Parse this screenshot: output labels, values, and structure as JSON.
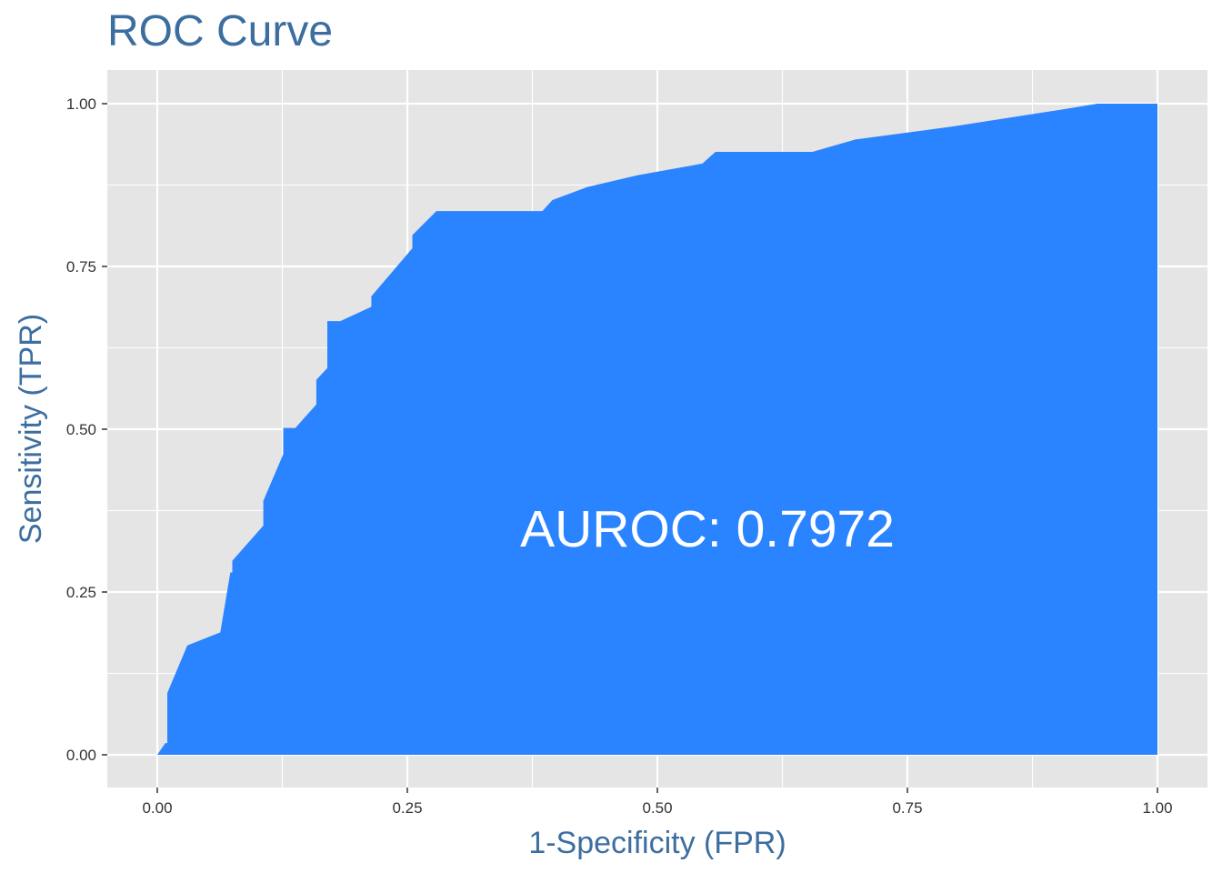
{
  "chart_data": {
    "type": "area",
    "title": "ROC Curve",
    "xlabel": "1-Specificity (FPR)",
    "ylabel": "Sensitivity (TPR)",
    "xlim": [
      -0.1,
      1.1
    ],
    "ylim": [
      -0.05,
      1.05
    ],
    "x_ticks": [
      0.0,
      0.25,
      0.5,
      0.75,
      1.0
    ],
    "x_tick_labels": [
      "0.00",
      "0.25",
      "0.50",
      "0.75",
      "1.00"
    ],
    "y_ticks": [
      0.0,
      0.25,
      0.5,
      0.75,
      1.0
    ],
    "y_tick_labels": [
      "0.00",
      "0.25",
      "0.50",
      "0.75",
      "1.00"
    ],
    "grid": true,
    "fill_color": "#2b84ff",
    "panel_color": "#e5e5e5",
    "annotation": "AUROC: 0.7972",
    "series": [
      {
        "x": [
          0.0,
          0.008,
          0.01,
          0.01,
          0.03,
          0.063,
          0.073,
          0.075,
          0.075,
          0.106,
          0.106,
          0.126,
          0.126,
          0.138,
          0.159,
          0.159,
          0.17,
          0.17,
          0.183,
          0.214,
          0.214,
          0.255,
          0.255,
          0.279,
          0.385,
          0.395,
          0.43,
          0.48,
          0.545,
          0.558,
          0.655,
          0.698,
          0.795,
          0.9,
          0.94,
          1.0
        ],
        "y": [
          0.0,
          0.018,
          0.018,
          0.095,
          0.168,
          0.188,
          0.28,
          0.28,
          0.298,
          0.352,
          0.39,
          0.462,
          0.502,
          0.502,
          0.538,
          0.576,
          0.594,
          0.666,
          0.666,
          0.688,
          0.704,
          0.778,
          0.798,
          0.835,
          0.835,
          0.852,
          0.872,
          0.89,
          0.908,
          0.926,
          0.926,
          0.945,
          0.965,
          0.99,
          1.0,
          1.0
        ]
      }
    ]
  }
}
